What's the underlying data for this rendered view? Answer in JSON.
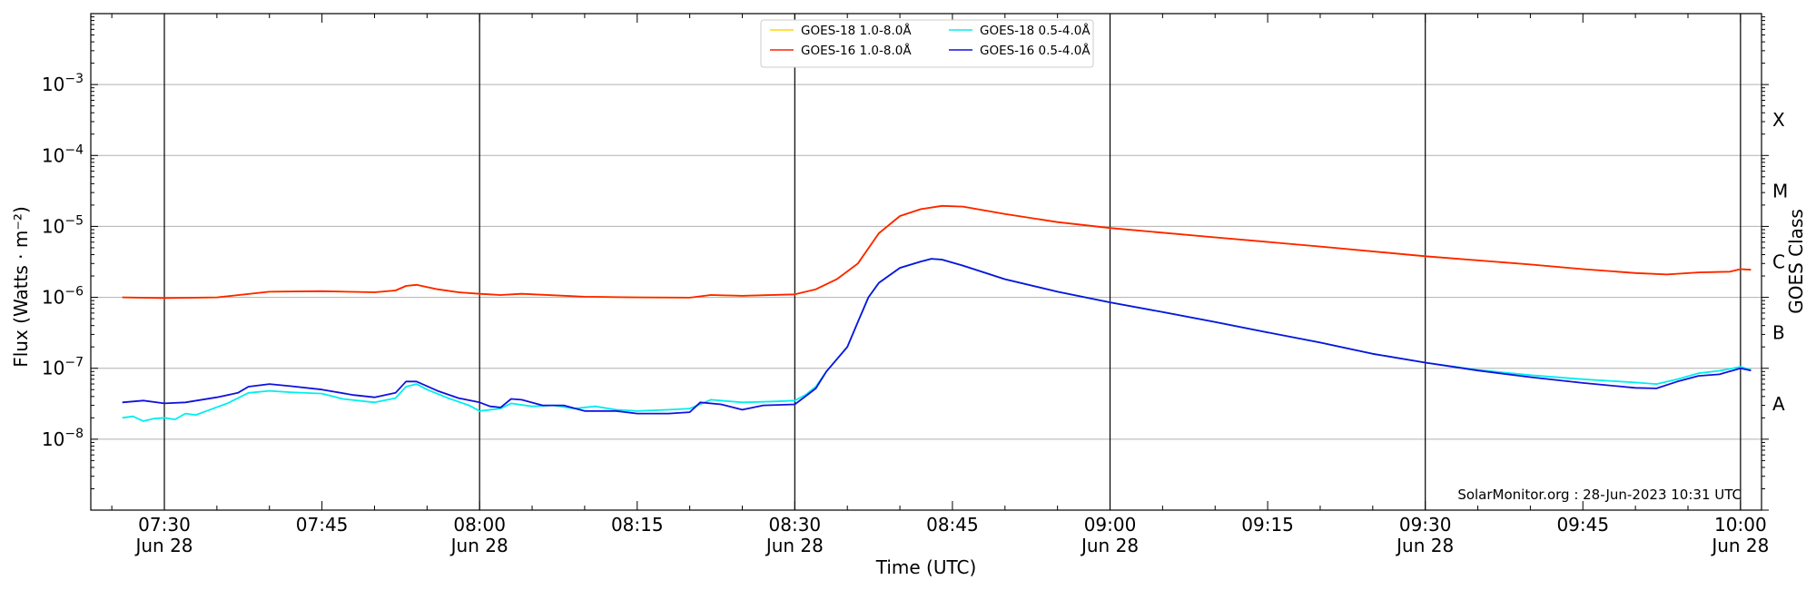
{
  "chart_data": {
    "type": "line",
    "xlabel": "Time (UTC)",
    "ylabel": "Flux (Watts · m⁻²)",
    "right_axis_label": "GOES Class",
    "y_scale": "log",
    "ylim": [
      1e-09,
      0.01
    ],
    "xlim": [
      "07:23",
      "10:02"
    ],
    "grid": "horizontal at decades",
    "x_ticks": [
      {
        "t": "07:30",
        "time": "07:30",
        "date": "Jun 28"
      },
      {
        "t": "07:45",
        "time": "07:45",
        "date": ""
      },
      {
        "t": "08:00",
        "time": "08:00",
        "date": "Jun 28"
      },
      {
        "t": "08:15",
        "time": "08:15",
        "date": ""
      },
      {
        "t": "08:30",
        "time": "08:30",
        "date": "Jun 28"
      },
      {
        "t": "08:45",
        "time": "08:45",
        "date": ""
      },
      {
        "t": "09:00",
        "time": "09:00",
        "date": "Jun 28"
      },
      {
        "t": "09:15",
        "time": "09:15",
        "date": ""
      },
      {
        "t": "09:30",
        "time": "09:30",
        "date": "Jun 28"
      },
      {
        "t": "09:45",
        "time": "09:45",
        "date": ""
      },
      {
        "t": "10:00",
        "time": "10:00",
        "date": "Jun 28"
      }
    ],
    "vlines": [
      "07:30",
      "08:00",
      "08:30",
      "09:00",
      "09:30",
      "10:00"
    ],
    "y_ticks": [
      {
        "value": 1e-08,
        "base": "10",
        "exp": "−8"
      },
      {
        "value": 1e-07,
        "base": "10",
        "exp": "−7"
      },
      {
        "value": 1e-06,
        "base": "10",
        "exp": "−6"
      },
      {
        "value": 1e-05,
        "base": "10",
        "exp": "−5"
      },
      {
        "value": 0.0001,
        "base": "10",
        "exp": "−4"
      },
      {
        "value": 0.001,
        "base": "10",
        "exp": "−3"
      }
    ],
    "goes_classes": [
      {
        "label": "A",
        "value": 3.16e-08
      },
      {
        "label": "B",
        "value": 3.16e-07
      },
      {
        "label": "C",
        "value": 3.16e-06
      },
      {
        "label": "M",
        "value": 3.16e-05
      },
      {
        "label": "X",
        "value": 0.000316
      }
    ],
    "annotation": "SolarMonitor.org : 28-Jun-2023 10:31 UTC",
    "legend": {
      "position": "top-center"
    },
    "series": [
      {
        "name": "GOES-18 1.0-8.0Å",
        "color": "#ffd700",
        "points": [
          [
            "07:26",
            1e-06
          ],
          [
            "07:30",
            9.8e-07
          ],
          [
            "07:35",
            1e-06
          ],
          [
            "07:40",
            1.2e-06
          ],
          [
            "07:45",
            1.22e-06
          ],
          [
            "07:50",
            1.18e-06
          ],
          [
            "07:52",
            1.25e-06
          ],
          [
            "07:53",
            1.45e-06
          ],
          [
            "07:54",
            1.5e-06
          ],
          [
            "07:56",
            1.3e-06
          ],
          [
            "07:58",
            1.18e-06
          ],
          [
            "08:00",
            1.12e-06
          ],
          [
            "08:02",
            1.08e-06
          ],
          [
            "08:04",
            1.12e-06
          ],
          [
            "08:10",
            1.02e-06
          ],
          [
            "08:15",
            1e-06
          ],
          [
            "08:20",
            9.9e-07
          ],
          [
            "08:22",
            1.08e-06
          ],
          [
            "08:25",
            1.05e-06
          ],
          [
            "08:30",
            1.1e-06
          ],
          [
            "08:32",
            1.3e-06
          ],
          [
            "08:34",
            1.8e-06
          ],
          [
            "08:36",
            3e-06
          ],
          [
            "08:38",
            8e-06
          ],
          [
            "08:40",
            1.4e-05
          ],
          [
            "08:42",
            1.75e-05
          ],
          [
            "08:44",
            1.95e-05
          ],
          [
            "08:46",
            1.9e-05
          ],
          [
            "08:50",
            1.5e-05
          ],
          [
            "08:55",
            1.15e-05
          ],
          [
            "09:00",
            9.5e-06
          ],
          [
            "09:10",
            7e-06
          ],
          [
            "09:20",
            5.2e-06
          ],
          [
            "09:30",
            3.8e-06
          ],
          [
            "09:40",
            2.9e-06
          ],
          [
            "09:45",
            2.5e-06
          ],
          [
            "09:50",
            2.2e-06
          ],
          [
            "09:53",
            2.1e-06
          ],
          [
            "09:56",
            2.25e-06
          ],
          [
            "09:59",
            2.3e-06
          ],
          [
            "10:00",
            2.5e-06
          ],
          [
            "10:01",
            2.45e-06
          ]
        ]
      },
      {
        "name": "GOES-16 1.0-8.0Å",
        "color": "#ff2200",
        "points": [
          [
            "07:26",
            1e-06
          ],
          [
            "07:30",
            9.8e-07
          ],
          [
            "07:35",
            1e-06
          ],
          [
            "07:40",
            1.2e-06
          ],
          [
            "07:45",
            1.22e-06
          ],
          [
            "07:50",
            1.18e-06
          ],
          [
            "07:52",
            1.25e-06
          ],
          [
            "07:53",
            1.45e-06
          ],
          [
            "07:54",
            1.5e-06
          ],
          [
            "07:56",
            1.3e-06
          ],
          [
            "07:58",
            1.18e-06
          ],
          [
            "08:00",
            1.12e-06
          ],
          [
            "08:02",
            1.08e-06
          ],
          [
            "08:04",
            1.12e-06
          ],
          [
            "08:10",
            1.02e-06
          ],
          [
            "08:15",
            1e-06
          ],
          [
            "08:20",
            9.9e-07
          ],
          [
            "08:22",
            1.08e-06
          ],
          [
            "08:25",
            1.05e-06
          ],
          [
            "08:30",
            1.1e-06
          ],
          [
            "08:32",
            1.3e-06
          ],
          [
            "08:34",
            1.8e-06
          ],
          [
            "08:36",
            3e-06
          ],
          [
            "08:38",
            8e-06
          ],
          [
            "08:40",
            1.4e-05
          ],
          [
            "08:42",
            1.75e-05
          ],
          [
            "08:44",
            1.95e-05
          ],
          [
            "08:46",
            1.9e-05
          ],
          [
            "08:50",
            1.5e-05
          ],
          [
            "08:55",
            1.15e-05
          ],
          [
            "09:00",
            9.5e-06
          ],
          [
            "09:10",
            7e-06
          ],
          [
            "09:20",
            5.2e-06
          ],
          [
            "09:30",
            3.8e-06
          ],
          [
            "09:40",
            2.9e-06
          ],
          [
            "09:45",
            2.5e-06
          ],
          [
            "09:50",
            2.2e-06
          ],
          [
            "09:53",
            2.1e-06
          ],
          [
            "09:56",
            2.25e-06
          ],
          [
            "09:59",
            2.3e-06
          ],
          [
            "10:00",
            2.5e-06
          ],
          [
            "10:01",
            2.45e-06
          ]
        ]
      },
      {
        "name": "GOES-18 0.5-4.0Å",
        "color": "#00eeee",
        "points": [
          [
            "07:26",
            2e-08
          ],
          [
            "07:27",
            2.1e-08
          ],
          [
            "07:28",
            1.8e-08
          ],
          [
            "07:29",
            1.95e-08
          ],
          [
            "07:30",
            2e-08
          ],
          [
            "07:31",
            1.9e-08
          ],
          [
            "07:32",
            2.3e-08
          ],
          [
            "07:33",
            2.2e-08
          ],
          [
            "07:34",
            2.5e-08
          ],
          [
            "07:36",
            3.2e-08
          ],
          [
            "07:38",
            4.5e-08
          ],
          [
            "07:40",
            4.8e-08
          ],
          [
            "07:42",
            4.6e-08
          ],
          [
            "07:45",
            4.4e-08
          ],
          [
            "07:47",
            3.7e-08
          ],
          [
            "07:50",
            3.3e-08
          ],
          [
            "07:52",
            3.8e-08
          ],
          [
            "07:53",
            5.5e-08
          ],
          [
            "07:54",
            6e-08
          ],
          [
            "07:55",
            5e-08
          ],
          [
            "07:57",
            3.8e-08
          ],
          [
            "07:59",
            3e-08
          ],
          [
            "08:00",
            2.5e-08
          ],
          [
            "08:02",
            2.7e-08
          ],
          [
            "08:03",
            3.2e-08
          ],
          [
            "08:05",
            2.9e-08
          ],
          [
            "08:07",
            3e-08
          ],
          [
            "08:09",
            2.7e-08
          ],
          [
            "08:11",
            2.9e-08
          ],
          [
            "08:13",
            2.6e-08
          ],
          [
            "08:15",
            2.5e-08
          ],
          [
            "08:18",
            2.6e-08
          ],
          [
            "08:20",
            2.7e-08
          ],
          [
            "08:22",
            3.6e-08
          ],
          [
            "08:25",
            3.3e-08
          ],
          [
            "08:28",
            3.4e-08
          ],
          [
            "08:30",
            3.5e-08
          ],
          [
            "08:31",
            4.2e-08
          ],
          [
            "08:32",
            5.5e-08
          ],
          [
            "08:33",
            9e-08
          ],
          [
            "08:35",
            2e-07
          ],
          [
            "08:36",
            4.5e-07
          ],
          [
            "08:37",
            1e-06
          ],
          [
            "08:38",
            1.6e-06
          ],
          [
            "08:40",
            2.6e-06
          ],
          [
            "08:42",
            3.2e-06
          ],
          [
            "08:43",
            3.5e-06
          ],
          [
            "08:44",
            3.4e-06
          ],
          [
            "08:46",
            2.8e-06
          ],
          [
            "08:50",
            1.8e-06
          ],
          [
            "08:55",
            1.2e-06
          ],
          [
            "09:00",
            8.5e-07
          ],
          [
            "09:05",
            6.2e-07
          ],
          [
            "09:10",
            4.5e-07
          ],
          [
            "09:15",
            3.2e-07
          ],
          [
            "09:20",
            2.3e-07
          ],
          [
            "09:25",
            1.6e-07
          ],
          [
            "09:30",
            1.2e-07
          ],
          [
            "09:35",
            9.5e-08
          ],
          [
            "09:40",
            8e-08
          ],
          [
            "09:45",
            7e-08
          ],
          [
            "09:50",
            6.3e-08
          ],
          [
            "09:52",
            6e-08
          ],
          [
            "09:54",
            7e-08
          ],
          [
            "09:56",
            8.5e-08
          ],
          [
            "09:58",
            9.2e-08
          ],
          [
            "10:00",
            1.05e-07
          ],
          [
            "10:01",
            9.5e-08
          ]
        ]
      },
      {
        "name": "GOES-16 0.5-4.0Å",
        "color": "#1111dd",
        "points": [
          [
            "07:26",
            3.3e-08
          ],
          [
            "07:28",
            3.5e-08
          ],
          [
            "07:30",
            3.2e-08
          ],
          [
            "07:32",
            3.3e-08
          ],
          [
            "07:35",
            3.9e-08
          ],
          [
            "07:37",
            4.5e-08
          ],
          [
            "07:38",
            5.5e-08
          ],
          [
            "07:40",
            6e-08
          ],
          [
            "07:42",
            5.6e-08
          ],
          [
            "07:45",
            5e-08
          ],
          [
            "07:48",
            4.2e-08
          ],
          [
            "07:50",
            3.9e-08
          ],
          [
            "07:52",
            4.5e-08
          ],
          [
            "07:53",
            6.5e-08
          ],
          [
            "07:54",
            6.5e-08
          ],
          [
            "07:56",
            4.8e-08
          ],
          [
            "07:58",
            3.8e-08
          ],
          [
            "08:00",
            3.3e-08
          ],
          [
            "08:01",
            2.9e-08
          ],
          [
            "08:02",
            2.8e-08
          ],
          [
            "08:03",
            3.7e-08
          ],
          [
            "08:04",
            3.6e-08
          ],
          [
            "08:06",
            3e-08
          ],
          [
            "08:08",
            3e-08
          ],
          [
            "08:10",
            2.5e-08
          ],
          [
            "08:13",
            2.5e-08
          ],
          [
            "08:15",
            2.3e-08
          ],
          [
            "08:18",
            2.3e-08
          ],
          [
            "08:20",
            2.4e-08
          ],
          [
            "08:21",
            3.3e-08
          ],
          [
            "08:23",
            3.1e-08
          ],
          [
            "08:25",
            2.6e-08
          ],
          [
            "08:27",
            3e-08
          ],
          [
            "08:30",
            3.1e-08
          ],
          [
            "08:31",
            4e-08
          ],
          [
            "08:32",
            5.2e-08
          ],
          [
            "08:33",
            9e-08
          ],
          [
            "08:35",
            2e-07
          ],
          [
            "08:36",
            4.5e-07
          ],
          [
            "08:37",
            1e-06
          ],
          [
            "08:38",
            1.6e-06
          ],
          [
            "08:40",
            2.6e-06
          ],
          [
            "08:42",
            3.2e-06
          ],
          [
            "08:43",
            3.5e-06
          ],
          [
            "08:44",
            3.4e-06
          ],
          [
            "08:46",
            2.8e-06
          ],
          [
            "08:50",
            1.8e-06
          ],
          [
            "08:55",
            1.2e-06
          ],
          [
            "09:00",
            8.5e-07
          ],
          [
            "09:05",
            6.2e-07
          ],
          [
            "09:10",
            4.5e-07
          ],
          [
            "09:15",
            3.2e-07
          ],
          [
            "09:20",
            2.3e-07
          ],
          [
            "09:25",
            1.6e-07
          ],
          [
            "09:30",
            1.2e-07
          ],
          [
            "09:35",
            9.3e-08
          ],
          [
            "09:40",
            7.5e-08
          ],
          [
            "09:45",
            6.2e-08
          ],
          [
            "09:50",
            5.3e-08
          ],
          [
            "09:52",
            5.2e-08
          ],
          [
            "09:54",
            6.5e-08
          ],
          [
            "09:56",
            7.8e-08
          ],
          [
            "09:58",
            8.2e-08
          ],
          [
            "10:00",
            1e-07
          ],
          [
            "10:01",
            9.3e-08
          ]
        ]
      }
    ]
  }
}
